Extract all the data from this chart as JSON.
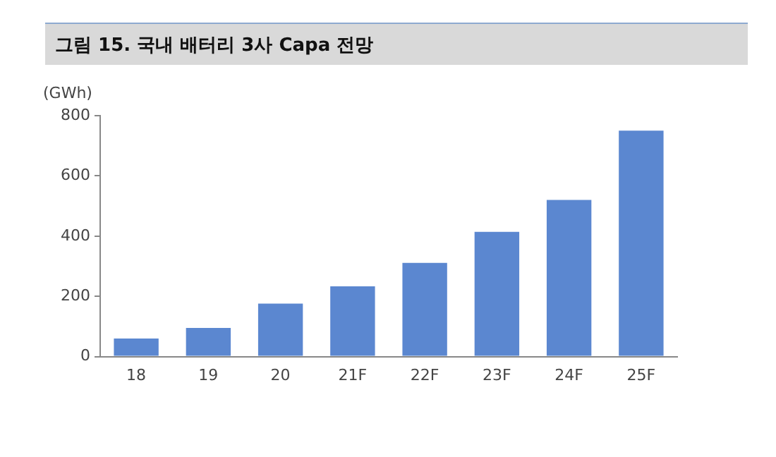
{
  "chart_data": {
    "type": "bar",
    "title": "그림 15. 국내 배터리 3사 Capa 전망",
    "ylabel": "(GWh)",
    "categories": [
      "18",
      "19",
      "20",
      "21F",
      "22F",
      "23F",
      "24F",
      "25F"
    ],
    "values": [
      60,
      95,
      176,
      233,
      311,
      414,
      520,
      750
    ],
    "color": "#5b87d0",
    "ylim": [
      0,
      800
    ],
    "yticks": [
      0,
      200,
      400,
      600,
      800
    ],
    "grid": false,
    "legend": false
  }
}
